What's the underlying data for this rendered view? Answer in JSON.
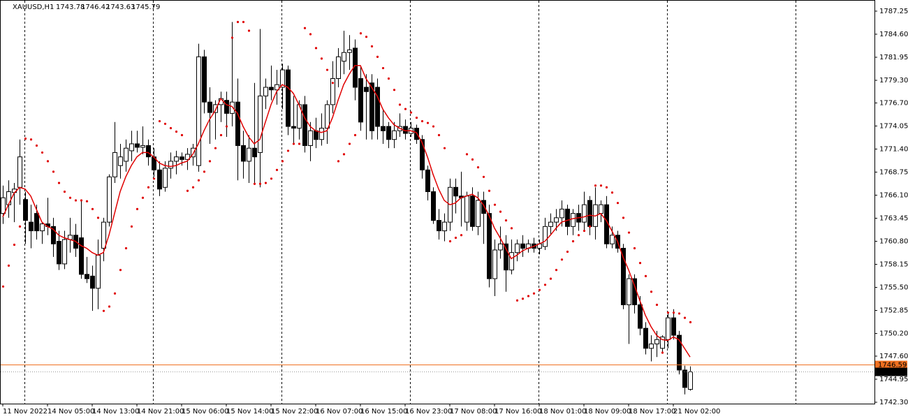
{
  "chart_data": {
    "type": "candlestick",
    "title": "XAUUSD,H1",
    "categories": [
      "11 Nov 2022",
      null,
      null,
      null,
      null,
      null,
      null,
      null,
      "14 Nov 05:00",
      null,
      null,
      null,
      null,
      null,
      null,
      null,
      "14 Nov 13:00",
      null,
      null,
      null,
      null,
      null,
      null,
      null,
      "14 Nov 21:00",
      null,
      null,
      null,
      null,
      null,
      null,
      null,
      "15 Nov 06:00",
      null,
      null,
      null,
      null,
      null,
      null,
      null,
      "15 Nov 14:00",
      null,
      null,
      null,
      null,
      null,
      null,
      null,
      "15 Nov 22:00",
      null,
      null,
      null,
      null,
      null,
      null,
      null,
      "16 Nov 07:00",
      null,
      null,
      null,
      null,
      null,
      null,
      null,
      "16 Nov 15:00",
      null,
      null,
      null,
      null,
      null,
      null,
      null,
      "16 Nov 23:00",
      null,
      null,
      null,
      null,
      null,
      null,
      null,
      "17 Nov 08:00",
      null,
      null,
      null,
      null,
      null,
      null,
      null,
      "17 Nov 16:00",
      null,
      null,
      null,
      null,
      null,
      null,
      null,
      "18 Nov 01:00",
      null,
      null,
      null,
      null,
      null,
      null,
      null,
      "18 Nov 09:00",
      null,
      null,
      null,
      null,
      null,
      null,
      null,
      "18 Nov 17:00",
      null,
      null,
      null,
      null,
      null,
      null,
      null,
      "21 Nov 02:00",
      null,
      null,
      null
    ],
    "open": [
      1764.0,
      1765.0,
      1766.4,
      1767.0,
      1765.6,
      1763.0,
      1764.0,
      1762.0,
      1762.8,
      1762.5,
      1760.8,
      1758.2,
      1761.0,
      1761.5,
      1761.2,
      1757.0,
      1756.8,
      1755.4,
      1760.0,
      1763.0,
      1768.2,
      1769.5,
      1770.0,
      1771.2,
      1772.0,
      1771.6,
      1771.8,
      1770.5,
      1769.0,
      1767.0,
      1769.2,
      1770.0,
      1770.5,
      1770.2,
      1770.5,
      1769.5,
      1782.0,
      1776.8,
      1775.6,
      1776.5,
      1777.0,
      1775.5,
      1776.8,
      1771.8,
      1770.0,
      1771.5,
      1771.0,
      1777.5,
      1778.5,
      1778.2,
      1778.5,
      1780.5,
      1774.0,
      1773.8,
      1776.5,
      1771.8,
      1773.5,
      1772.5,
      1773.8,
      1776.5,
      1779.5,
      1781.5,
      1782.5,
      1783.0,
      1779.5,
      1778.5,
      1779.0,
      1778.5,
      1774.0,
      1774.0,
      1772.5,
      1773.5,
      1774.0,
      1773.2,
      1773.8,
      1772.5,
      1769.0,
      1766.5,
      1763.2,
      1762.0,
      1763.0,
      1767.0,
      1766.0,
      1763.0,
      1766.0,
      1762.5,
      1765.5,
      1764.0,
      1756.5,
      1759.8,
      1760.5,
      1757.5,
      1759.5,
      1760.5,
      1760.0,
      1760.5,
      1760.0,
      1760.2,
      1762.5,
      1763.0,
      1763.5,
      1764.5,
      1762.5,
      1764.0,
      1763.0,
      1765.5,
      1762.5,
      1764.0,
      1765.0,
      1760.5,
      1761.5,
      1760.0,
      1753.5,
      1756.5,
      1753.5,
      1750.8,
      1748.5,
      1749.0,
      1748.5,
      1749.5,
      1752.0,
      1750.0,
      1746.0,
      1743.78
    ],
    "high": [
      1767.2,
      1767.8,
      1767.5,
      1772.5,
      1766.5,
      1765.0,
      1765.0,
      1763.0,
      1765.8,
      1763.5,
      1762.0,
      1762.0,
      1763.5,
      1762.8,
      1765.5,
      1759.0,
      1758.0,
      1761.0,
      1763.5,
      1768.5,
      1774.5,
      1772.0,
      1772.5,
      1773.5,
      1773.5,
      1774.0,
      1772.5,
      1771.5,
      1770.0,
      1770.0,
      1771.0,
      1771.2,
      1771.0,
      1771.5,
      1772.0,
      1783.5,
      1782.8,
      1778.5,
      1777.0,
      1778.0,
      1778.0,
      1786.0,
      1779.5,
      1773.5,
      1773.0,
      1779.0,
      1785.2,
      1779.5,
      1781.0,
      1780.5,
      1781.2,
      1781.0,
      1777.5,
      1777.0,
      1777.5,
      1774.5,
      1775.0,
      1775.5,
      1777.0,
      1781.5,
      1783.0,
      1785.0,
      1784.5,
      1784.0,
      1781.0,
      1780.0,
      1780.0,
      1779.5,
      1776.0,
      1774.5,
      1774.5,
      1775.5,
      1774.8,
      1774.5,
      1774.2,
      1773.0,
      1769.5,
      1767.0,
      1764.5,
      1764.0,
      1768.0,
      1768.0,
      1768.8,
      1766.5,
      1767.0,
      1766.5,
      1766.5,
      1765.0,
      1761.0,
      1762.5,
      1761.5,
      1761.0,
      1761.0,
      1761.5,
      1761.0,
      1761.2,
      1761.0,
      1763.5,
      1764.0,
      1764.5,
      1765.5,
      1765.0,
      1764.5,
      1765.0,
      1766.5,
      1766.0,
      1767.0,
      1765.5,
      1766.0,
      1762.5,
      1762.0,
      1760.5,
      1757.0,
      1757.0,
      1754.5,
      1751.5,
      1750.0,
      1750.5,
      1750.0,
      1752.5,
      1753.0,
      1750.5,
      1746.5,
      1746.42
    ],
    "low": [
      1762.8,
      1763.5,
      1763.0,
      1765.0,
      1760.5,
      1760.0,
      1761.0,
      1760.5,
      1761.5,
      1759.0,
      1757.5,
      1757.6,
      1759.5,
      1759.0,
      1756.5,
      1756.0,
      1752.8,
      1753.0,
      1758.5,
      1762.5,
      1767.5,
      1768.0,
      1768.8,
      1770.0,
      1771.0,
      1770.8,
      1769.5,
      1768.2,
      1766.0,
      1766.5,
      1768.0,
      1768.5,
      1769.5,
      1769.0,
      1769.5,
      1768.8,
      1775.5,
      1772.0,
      1772.5,
      1774.5,
      1772.8,
      1774.0,
      1767.8,
      1768.0,
      1767.5,
      1767.5,
      1767.0,
      1776.0,
      1777.0,
      1776.5,
      1776.0,
      1773.0,
      1772.0,
      1772.5,
      1771.0,
      1770.0,
      1771.5,
      1771.8,
      1772.0,
      1775.5,
      1778.5,
      1780.0,
      1780.5,
      1777.0,
      1773.5,
      1772.5,
      1772.5,
      1772.5,
      1772.0,
      1771.5,
      1771.5,
      1772.8,
      1772.5,
      1772.8,
      1772.0,
      1768.0,
      1765.5,
      1762.8,
      1761.0,
      1760.8,
      1762.0,
      1764.0,
      1762.5,
      1762.0,
      1762.0,
      1761.5,
      1760.5,
      1755.5,
      1754.5,
      1758.8,
      1755.0,
      1757.0,
      1758.5,
      1759.0,
      1759.5,
      1759.5,
      1759.3,
      1759.8,
      1761.5,
      1762.0,
      1762.5,
      1761.5,
      1761.5,
      1762.0,
      1762.0,
      1761.5,
      1761.0,
      1763.0,
      1760.0,
      1760.0,
      1759.5,
      1753.0,
      1749.0,
      1752.5,
      1750.0,
      1747.8,
      1747.0,
      1747.5,
      1748.0,
      1748.5,
      1749.5,
      1745.5,
      1743.2,
      1743.63
    ],
    "close": [
      1765.8,
      1766.5,
      1766.8,
      1770.5,
      1763.2,
      1762.0,
      1762.0,
      1762.8,
      1762.5,
      1760.5,
      1758.2,
      1761.0,
      1761.5,
      1760.0,
      1757.0,
      1756.5,
      1755.4,
      1759.2,
      1763.0,
      1768.2,
      1771.0,
      1770.5,
      1771.5,
      1772.0,
      1771.6,
      1771.8,
      1770.5,
      1769.0,
      1766.8,
      1769.2,
      1770.0,
      1770.5,
      1770.2,
      1770.8,
      1771.5,
      1782.0,
      1776.8,
      1775.6,
      1776.5,
      1777.2,
      1775.5,
      1776.8,
      1771.8,
      1770.0,
      1771.5,
      1770.5,
      1777.5,
      1778.5,
      1778.2,
      1778.8,
      1780.5,
      1774.0,
      1773.8,
      1776.5,
      1771.8,
      1773.5,
      1772.5,
      1773.8,
      1776.5,
      1779.5,
      1782.0,
      1782.5,
      1782.8,
      1778.5,
      1774.5,
      1778.0,
      1773.5,
      1774.0,
      1773.5,
      1772.5,
      1773.5,
      1774.0,
      1773.2,
      1773.8,
      1772.5,
      1769.0,
      1766.5,
      1763.2,
      1762.0,
      1763.0,
      1767.0,
      1766.0,
      1765.8,
      1766.0,
      1762.5,
      1765.5,
      1764.0,
      1756.5,
      1759.8,
      1760.5,
      1757.5,
      1759.5,
      1760.5,
      1760.0,
      1760.5,
      1760.0,
      1760.5,
      1762.5,
      1763.0,
      1763.5,
      1764.5,
      1762.5,
      1764.0,
      1763.0,
      1765.0,
      1762.5,
      1765.0,
      1765.0,
      1760.5,
      1761.5,
      1760.0,
      1753.5,
      1756.5,
      1753.5,
      1750.8,
      1748.5,
      1749.0,
      1749.5,
      1749.8,
      1752.0,
      1750.0,
      1746.0,
      1744.0,
      1745.79
    ],
    "ma": [
      1763.6,
      1765.0,
      1766.3,
      1767.0,
      1766.8,
      1766.0,
      1764.5,
      1763.0,
      1762.5,
      1762.2,
      1761.5,
      1761.2,
      1761.0,
      1760.8,
      1760.3,
      1760.0,
      1759.5,
      1759.2,
      1759.5,
      1761.5,
      1764.0,
      1766.5,
      1768.2,
      1769.5,
      1770.5,
      1771.0,
      1771.0,
      1770.5,
      1769.8,
      1769.5,
      1769.4,
      1769.5,
      1769.8,
      1770.0,
      1770.8,
      1772.0,
      1773.5,
      1774.8,
      1775.8,
      1777.2,
      1776.5,
      1776.3,
      1775.5,
      1774.0,
      1772.8,
      1772.0,
      1772.5,
      1774.5,
      1776.5,
      1778.0,
      1778.8,
      1778.5,
      1777.8,
      1776.5,
      1775.0,
      1774.0,
      1773.5,
      1773.3,
      1773.5,
      1775.0,
      1777.0,
      1778.8,
      1780.0,
      1781.0,
      1781.0,
      1779.5,
      1778.5,
      1777.5,
      1776.0,
      1775.0,
      1774.2,
      1773.8,
      1773.5,
      1773.5,
      1773.3,
      1772.2,
      1770.5,
      1768.5,
      1766.8,
      1765.5,
      1765.0,
      1765.2,
      1765.8,
      1766.0,
      1766.2,
      1765.8,
      1765.0,
      1763.8,
      1762.3,
      1761.2,
      1760.0,
      1758.8,
      1759.2,
      1759.7,
      1760.0,
      1760.2,
      1760.5,
      1760.8,
      1761.5,
      1762.3,
      1763.0,
      1763.2,
      1763.4,
      1763.5,
      1763.6,
      1763.8,
      1763.7,
      1764.0,
      1763.2,
      1762.0,
      1760.8,
      1759.0,
      1757.5,
      1755.8,
      1754.0,
      1752.3,
      1751.0,
      1750.0,
      1749.5,
      1749.4,
      1749.8,
      1749.5,
      1748.5,
      1747.5
    ],
    "sar": [
      1755.6,
      1758.0,
      1760.4,
      1762.5,
      1772.6,
      1772.5,
      1771.8,
      1771.0,
      1770.0,
      1768.8,
      1767.5,
      1766.5,
      1765.8,
      1765.5,
      1765.5,
      1765.4,
      1764.5,
      1763.5,
      1752.8,
      1753.3,
      1754.8,
      1757.5,
      1760.0,
      1762.5,
      1764.5,
      1765.8,
      1767.0,
      1768.0,
      1774.6,
      1774.3,
      1773.8,
      1773.4,
      1773.0,
      1766.6,
      1767.0,
      1767.8,
      1768.8,
      1770.0,
      1771.5,
      1773.0,
      1774.0,
      1784.2,
      1786.0,
      1786.0,
      1785.0,
      1767.4,
      1767.4,
      1767.5,
      1768.0,
      1769.0,
      1770.0,
      1771.2,
      1772.0,
      1772.0,
      1785.3,
      1784.6,
      1783.0,
      1781.8,
      1780.5,
      1779.0,
      1770.0,
      1770.8,
      1772.0,
      1773.0,
      1784.7,
      1784.3,
      1783.2,
      1782.0,
      1780.7,
      1779.5,
      1778.2,
      1776.5,
      1776.0,
      1775.6,
      1775.0,
      1774.6,
      1774.4,
      1774.0,
      1773.0,
      1771.5,
      1760.8,
      1761.2,
      1761.5,
      1770.8,
      1770.2,
      1769.3,
      1768.2,
      1766.6,
      1765.0,
      1764.2,
      1763.2,
      1762.3,
      1754.0,
      1754.2,
      1754.5,
      1754.8,
      1755.2,
      1755.8,
      1756.5,
      1757.5,
      1758.7,
      1759.6,
      1760.8,
      1761.5,
      1762.0,
      1762.5,
      1767.2,
      1767.2,
      1767.0,
      1766.4,
      1765.2,
      1763.5,
      1761.8,
      1760.0,
      1758.3,
      1756.8,
      1755.0,
      1753.5,
      1748.0,
      1752.6,
      1752.6,
      1752.5,
      1752.0,
      1751.5
    ],
    "ask": 1746.59,
    "ylim": [
      1742.14,
      1788.53
    ],
    "yticks": [
      1787.25,
      {
        "value": 1784.6,
        "label": "1784.60"
      },
      1781.95,
      {
        "value": 1779.3,
        "label": "1779.30"
      },
      {
        "value": 1776.7,
        "label": "1776.70"
      },
      1774.05,
      {
        "value": 1771.4,
        "label": "1771.40"
      },
      1768.75,
      {
        "value": 1766.1,
        "label": "1766.10"
      },
      1763.45,
      {
        "value": 1760.8,
        "label": "1760.80"
      },
      1758.15,
      {
        "value": 1755.5,
        "label": "1755.50"
      },
      1752.85,
      {
        "value": 1750.2,
        "label": "1750.20"
      },
      {
        "value": 1747.6,
        "label": "1747.60"
      },
      1744.95,
      {
        "value": 1742.3,
        "label": "1742.30"
      }
    ],
    "up_color": "#ffffff",
    "down_color": "#000000",
    "ma_color": "#e00000",
    "sar_color": "#e00000",
    "ask_color": "#f07020",
    "bid_color": "#999999"
  }
}
